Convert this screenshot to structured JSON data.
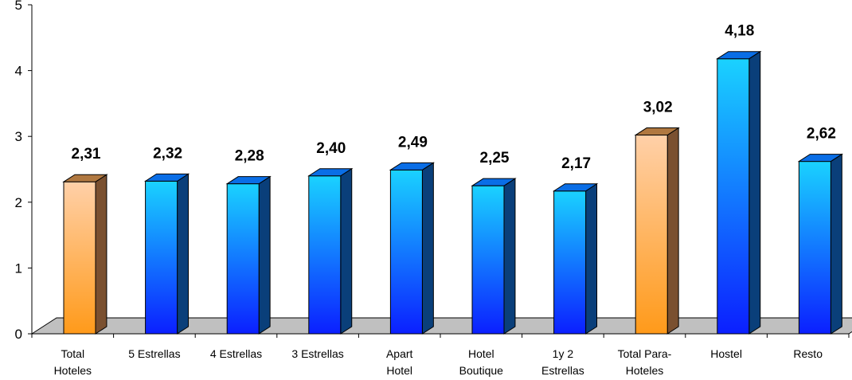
{
  "chart_data": {
    "type": "bar",
    "categories": [
      [
        "Total",
        "Hoteles"
      ],
      [
        "5 Estrellas"
      ],
      [
        "4 Estrellas"
      ],
      [
        "3 Estrellas"
      ],
      [
        "Apart",
        "Hotel"
      ],
      [
        "Hotel",
        "Boutique"
      ],
      [
        "1y 2",
        "Estrellas"
      ],
      [
        "Total Para-",
        "Hoteles"
      ],
      [
        "Hostel"
      ],
      [
        "Resto"
      ]
    ],
    "values": [
      2.31,
      2.32,
      2.28,
      2.4,
      2.49,
      2.25,
      2.17,
      3.02,
      4.18,
      2.62
    ],
    "value_labels": [
      "2,31",
      "2,32",
      "2,28",
      "2,40",
      "2,49",
      "2,25",
      "2,17",
      "3,02",
      "4,18",
      "2,62"
    ],
    "highlight": [
      true,
      false,
      false,
      false,
      false,
      false,
      false,
      true,
      false,
      false
    ],
    "ylim": [
      0,
      5
    ],
    "yticks": [
      0,
      1,
      2,
      3,
      4,
      5
    ],
    "colors": {
      "blue_top": "#1ad2ff",
      "blue_bottom": "#0b1fff",
      "blue_side": "#0a3f7a",
      "blue_cap": "#0a6ee6",
      "orange_top": "#ffd0a8",
      "orange_bottom": "#ff9a1a",
      "orange_side": "#7a5030",
      "orange_cap": "#b07840",
      "floor": "#c0c0c0"
    }
  }
}
